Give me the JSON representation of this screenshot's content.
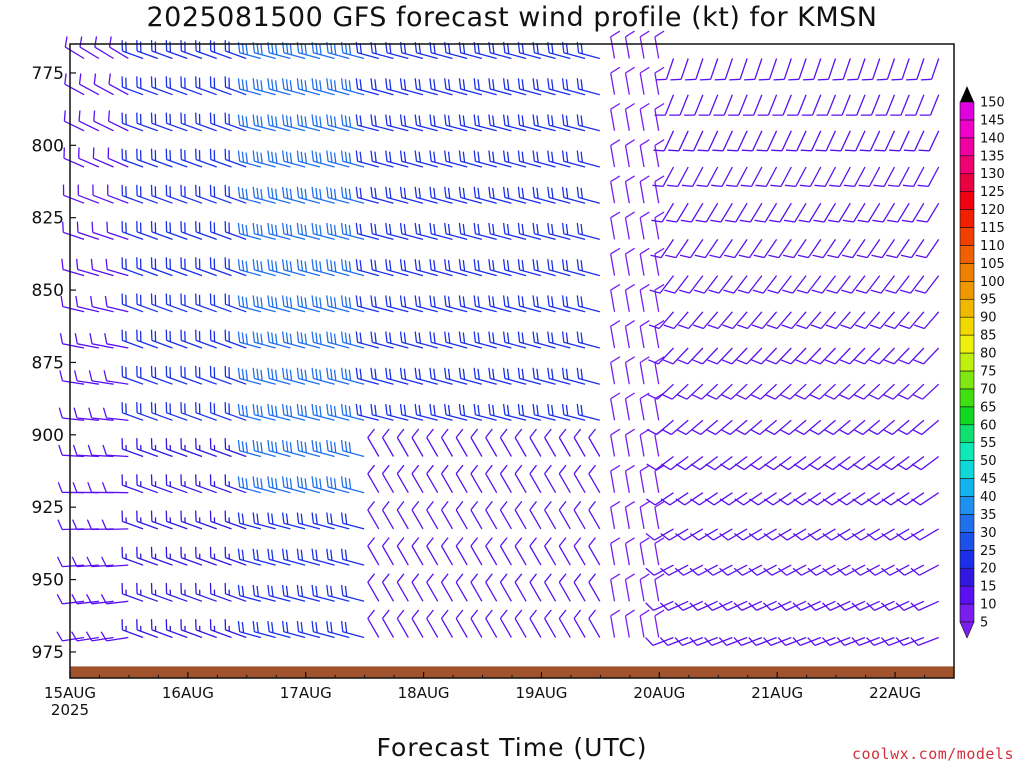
{
  "title": "2025081500 GFS forecast wind profile (kt) for KMSN",
  "x_axis_label": "Forecast Time (UTC)",
  "credit": "coolwx.com/models",
  "chart_data": {
    "type": "wind-barbs",
    "title": "2025081500 GFS forecast wind profile (kt) for KMSN",
    "xlabel": "Forecast Time (UTC)",
    "ylabel": "",
    "y_ticks": [
      775,
      800,
      825,
      850,
      875,
      900,
      925,
      950,
      975
    ],
    "ylim": [
      984,
      765
    ],
    "x_ticks": [
      "15AUG",
      "16AUG",
      "17AUG",
      "18AUG",
      "19AUG",
      "20AUG",
      "21AUG",
      "22AUG"
    ],
    "x_tick_sublabel": "2025",
    "xlim_days": [
      0,
      7.5
    ],
    "colorbar": {
      "levels": [
        5,
        10,
        15,
        20,
        25,
        30,
        35,
        40,
        45,
        50,
        55,
        60,
        65,
        70,
        75,
        80,
        85,
        90,
        95,
        100,
        105,
        110,
        115,
        120,
        125,
        130,
        135,
        140,
        145,
        150
      ],
      "colors": [
        "#7a1ef0",
        "#5a10f0",
        "#3018e0",
        "#1a30e8",
        "#1e50ea",
        "#2070ee",
        "#1e90f0",
        "#12b4ee",
        "#10d8d8",
        "#10e8b8",
        "#10e070",
        "#10d820",
        "#40e010",
        "#80e810",
        "#c0f010",
        "#f0f010",
        "#f0d800",
        "#f0b800",
        "#f09800",
        "#f08000",
        "#f06000",
        "#f04000",
        "#f02000",
        "#f00010",
        "#e80040",
        "#f00070",
        "#f000a0",
        "#f000c8",
        "#e000e0",
        "#c800c8"
      ]
    },
    "speed_by_regime_kt": {
      "15AUG": 10,
      "15AUG-16AUG": 20,
      "16AUG-17AUG": 30,
      "17AUG-19AUG": 20,
      "19AUG-20AUG": 10,
      "20AUG-22AUG": 10
    },
    "terrain_surface_hPa": 980,
    "terrain_color": "#a0522d"
  }
}
